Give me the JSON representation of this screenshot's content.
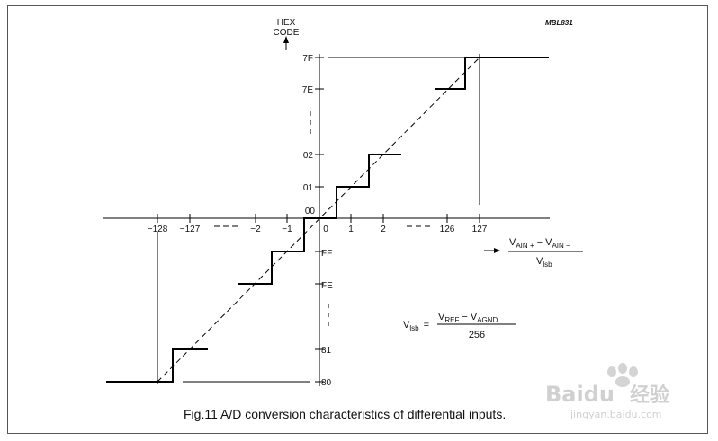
{
  "diagram": {
    "figure_id": "MBL831",
    "y_axis_label_line1": "HEX",
    "y_axis_label_line2": "CODE",
    "y_codes": {
      "c7F": "7F",
      "c7E": "7E",
      "c02": "02",
      "c01": "01",
      "c00": "00",
      "cFF": "FF",
      "cFE": "FE",
      "c81": "81",
      "c80": "80"
    },
    "x_ticks": {
      "n128": "−128",
      "n127": "−127",
      "n2": "−2",
      "n1": "−1",
      "z": "0",
      "p1": "1",
      "p2": "2",
      "p126": "126",
      "p127": "127"
    },
    "x_axis_formula": {
      "v1": "V",
      "s1": "AIN +",
      "op": " − V",
      "s2": "AIN −",
      "den_v": "V",
      "den_s": "lsb"
    },
    "lsb_formula": {
      "lhs_v": "V",
      "lhs_s": "lsb",
      "eq": "=",
      "num_v1": "V",
      "num_s1": "REF",
      "num_op": " − V",
      "num_s2": "AGND",
      "den": "256"
    },
    "caption": "Fig.11  A/D conversion characteristics of differential inputs."
  },
  "watermark": {
    "brand": "Bai",
    "brand2": "du",
    "brand_cn": "经验",
    "url": "jingyan.baidu.com"
  }
}
